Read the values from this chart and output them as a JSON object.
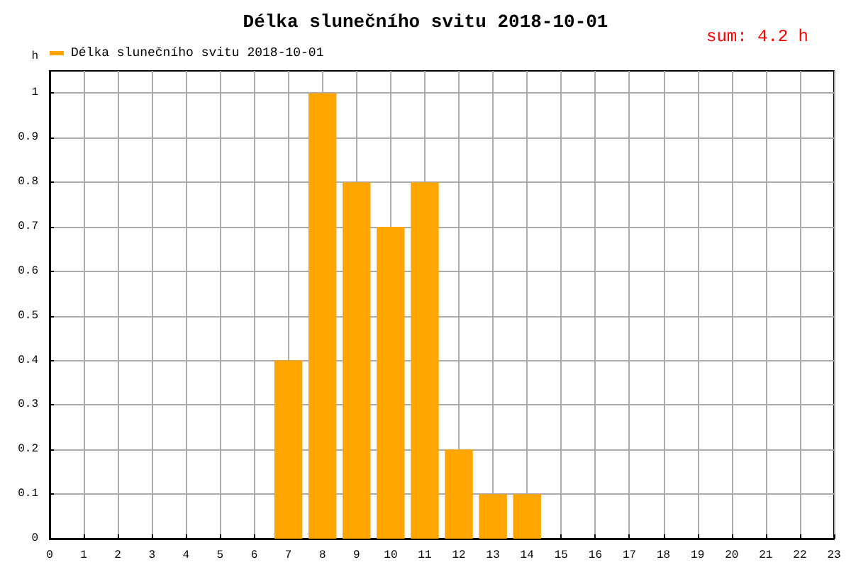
{
  "chart_data": {
    "type": "bar",
    "title": "Délka slunečního svitu 2018-10-01",
    "ylabel": "h",
    "annotations": [
      "sum: 4.2 h"
    ],
    "x": [
      7,
      8,
      9,
      10,
      11,
      12,
      13,
      14
    ],
    "series": [
      {
        "name": "Délka slunečního svitu 2018-10-01",
        "color": "#ffa500",
        "values": [
          0.4,
          1,
          0.8,
          0.7,
          0.8,
          0.2,
          0.1,
          0.1
        ]
      }
    ],
    "xlim": [
      0,
      23
    ],
    "xticks": [
      0,
      1,
      2,
      3,
      4,
      5,
      6,
      7,
      8,
      9,
      10,
      11,
      12,
      13,
      14,
      15,
      16,
      17,
      18,
      19,
      20,
      21,
      22,
      23
    ],
    "ylim": [
      0,
      1.05
    ],
    "yticks": [
      0,
      0.1,
      0.2,
      0.3,
      0.4,
      0.5,
      0.6,
      0.7,
      0.8,
      0.9,
      1
    ],
    "grid": true,
    "legend": "top left"
  }
}
